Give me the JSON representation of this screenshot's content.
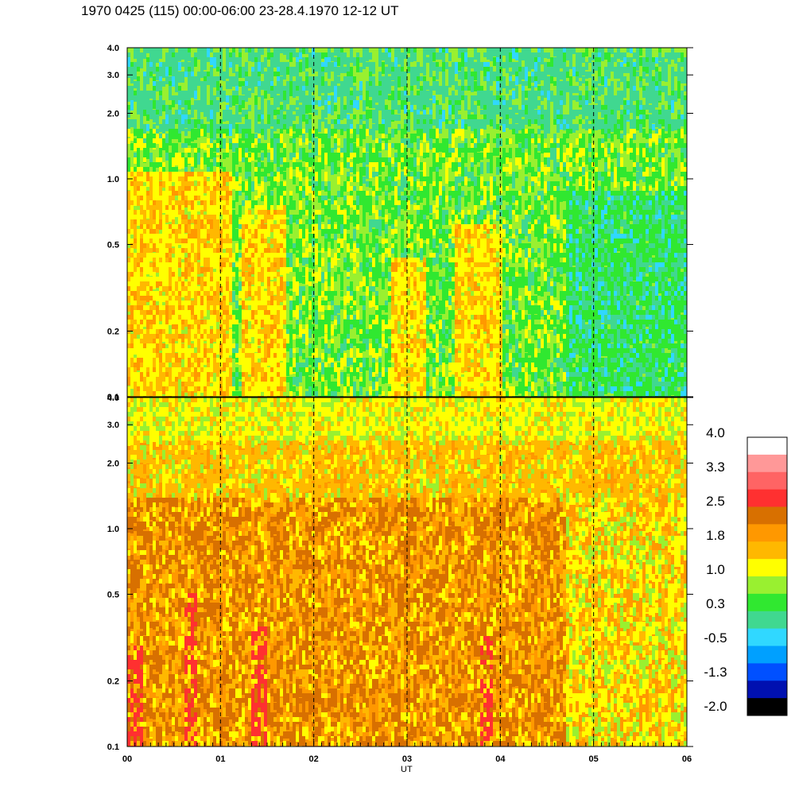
{
  "chart_data": [
    {
      "type": "heatmap",
      "panel": "upper",
      "title": "1970 0425 (115) 00:00-06:00 23-28.4.1970  12-12 UT",
      "xlabel": "UT",
      "x_ticks": [
        "00",
        "01",
        "02",
        "03",
        "04",
        "05",
        "06"
      ],
      "xlim": [
        0,
        6
      ],
      "y_scale": "log",
      "ylim": [
        0.1,
        4.0
      ],
      "y_ticks": [
        "0.1",
        "0.2",
        "0.5",
        "1.0",
        "2.0",
        "3.0",
        "4.0"
      ],
      "grid": "vertical dashed lines at each hour",
      "dominant_levels": "green to yellow (0.3 to 1.0); lower values (blue-green) near 05 UT below 1.0; yellow-orange patches near 00-01 UT"
    },
    {
      "type": "heatmap",
      "panel": "lower",
      "xlabel": "UT",
      "x_ticks": [
        "00",
        "01",
        "02",
        "03",
        "04",
        "05",
        "06"
      ],
      "xlim": [
        0,
        6
      ],
      "y_scale": "log",
      "ylim": [
        0.1,
        4.0
      ],
      "y_ticks": [
        "0.1",
        "0.2",
        "0.5",
        "1.0",
        "2.0",
        "3.0",
        "4.0"
      ],
      "grid": "vertical dashed lines at each hour",
      "dominant_levels": "orange to dark orange (1.8 to 2.5); red streaks near 00, 01.4, 03.8 UT; yellow-green near top"
    }
  ],
  "colorbar": {
    "labels": [
      "4.0",
      "3.3",
      "2.5",
      "1.8",
      "1.0",
      "0.3",
      "-0.5",
      "-1.3",
      "-2.0"
    ],
    "colors": [
      "#ffffff",
      "#ff9898",
      "#ff6464",
      "#ff3030",
      "#d87000",
      "#ff9800",
      "#ffb800",
      "#ffff00",
      "#99f030",
      "#30e830",
      "#40d890",
      "#30d8ff",
      "#00a0ff",
      "#0050ff",
      "#0010b0",
      "#000000"
    ]
  },
  "palette": {
    "dgreen": "#30e830",
    "lgreen": "#99f030",
    "yellow": "#ffff00",
    "yorange": "#ffb800",
    "orange": "#ff9800",
    "dorange": "#d87000",
    "red": "#ff3030",
    "teal": "#40d890",
    "cyan": "#30d8ff",
    "blue": "#00a0ff"
  }
}
